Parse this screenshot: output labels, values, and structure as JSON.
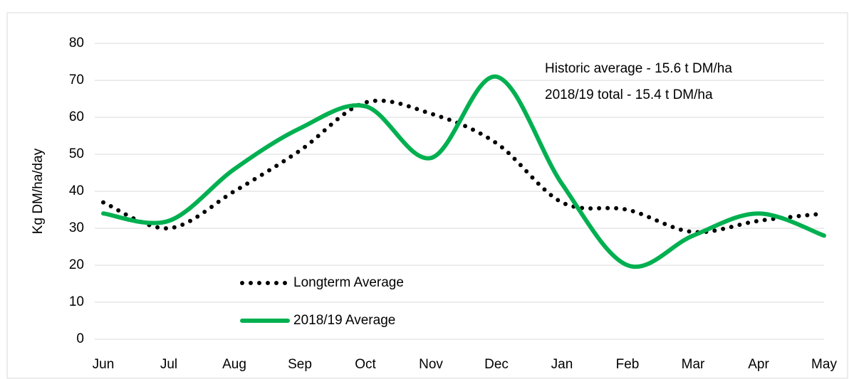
{
  "chart_data": {
    "type": "line",
    "y_label": "Kg DM/ha/day",
    "annotations": [
      "Historic average - 15.6 t DM/ha",
      "2018/19 total - 15.4 t DM/ha"
    ],
    "categories": [
      "Jun",
      "Jul",
      "Aug",
      "Sep",
      "Oct",
      "Nov",
      "Dec",
      "Jan",
      "Feb",
      "Mar",
      "Apr",
      "May"
    ],
    "series": [
      {
        "name": "Longterm Average",
        "color": "#000000",
        "style": "dotted",
        "values": [
          37,
          30,
          40,
          51,
          64,
          61,
          53,
          37,
          35,
          29,
          32,
          34
        ]
      },
      {
        "name": "2018/19 Average",
        "color": "#00b050",
        "style": "solid",
        "values": [
          34,
          32,
          46,
          57,
          63,
          49,
          71,
          42,
          20,
          28,
          34,
          28
        ]
      }
    ],
    "ylim": [
      0,
      80
    ],
    "yticks": [
      0,
      10,
      20,
      30,
      40,
      50,
      60,
      70,
      80
    ],
    "grid": true,
    "smooth": true,
    "legend": "lower left"
  }
}
